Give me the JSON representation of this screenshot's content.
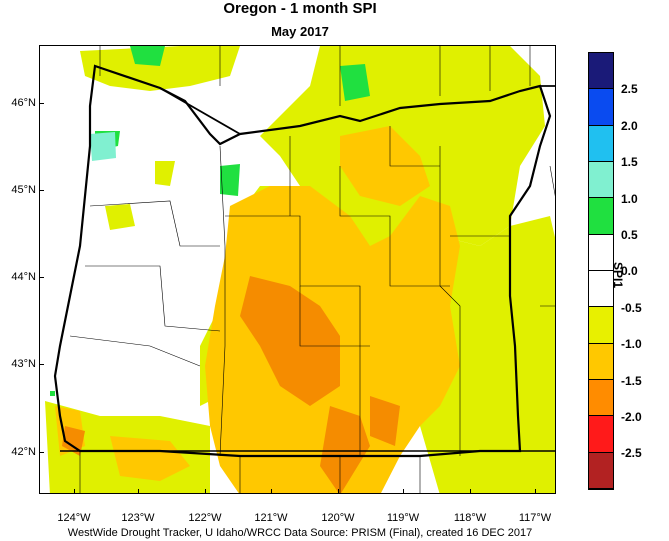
{
  "header": {
    "title": "Oregon - 1 month SPI",
    "subtitle": "May 2017"
  },
  "latitude_labels": [
    "46°N",
    "45°N",
    "44°N",
    "43°N",
    "42°N"
  ],
  "longitude_labels": [
    "124°W",
    "123°W",
    "122°W",
    "121°W",
    "120°W",
    "119°W",
    "118°W",
    "117°W"
  ],
  "legend": {
    "title": "SPI1",
    "labels": [
      "2.5",
      "2.0",
      "1.5",
      "1.0",
      "0.5",
      "0.0",
      "-0.5",
      "-1.0",
      "-1.5",
      "-2.0",
      "-2.5"
    ],
    "colors": [
      "#1a1a78",
      "#0a4bf0",
      "#20c0f0",
      "#80f0d0",
      "#20e040",
      "#ffffff",
      "#ffffff",
      "#e8f000",
      "#ffc800",
      "#ff8c00",
      "#ff1a1a",
      "#b22222"
    ]
  },
  "map": {
    "colors": {
      "dry_light": "#e0f000",
      "dry_moderate": "#ffc800",
      "dry_severe": "#f58c00",
      "wet_light": "#20e040",
      "wet_moderate": "#80f0d0",
      "neutral": "#ffffff"
    }
  },
  "footer": {
    "credit": "WestWide Drought Tracker, U Idaho/WRCC Data Source: PRISM (Final), created 16 DEC 2017"
  }
}
